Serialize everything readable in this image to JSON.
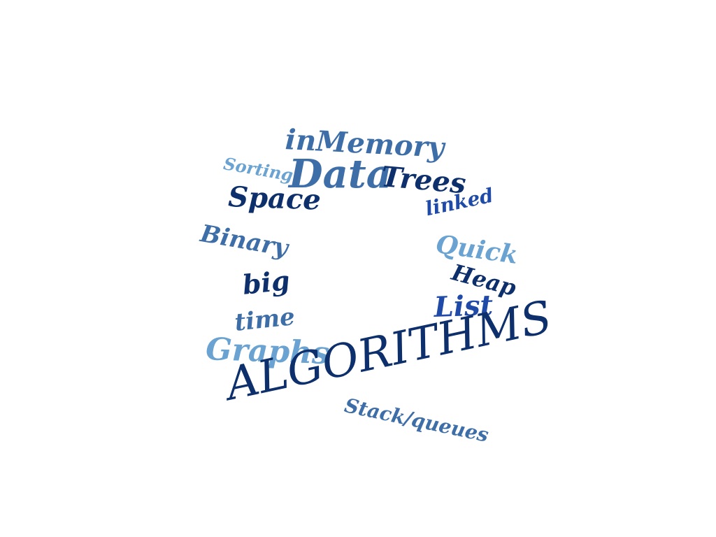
{
  "colors": {
    "background": "#ffffff",
    "navy": "#0d2f6b",
    "dark_blue": "#1c3f7a",
    "steel_blue": "#3d6ea8",
    "light_blue": "#6aa3d2",
    "royal_blue": "#1f4aa8"
  },
  "words": [
    {
      "id": "inmemory",
      "text": "inMemory",
      "color": "#3d6ea8"
    },
    {
      "id": "sorting",
      "text": "Sorting",
      "color": "#6aa3d2"
    },
    {
      "id": "data",
      "text": "Data",
      "color": "#3d6ea8"
    },
    {
      "id": "trees",
      "text": "Trees",
      "color": "#0d2f6b"
    },
    {
      "id": "space",
      "text": "Space",
      "color": "#0d2f6b"
    },
    {
      "id": "linked",
      "text": "linked",
      "color": "#1f4aa8"
    },
    {
      "id": "binary",
      "text": "Binary",
      "color": "#3d6ea8"
    },
    {
      "id": "quick",
      "text": "Quick",
      "color": "#6aa3d2"
    },
    {
      "id": "heap",
      "text": "Heap",
      "color": "#0d2f6b"
    },
    {
      "id": "big",
      "text": "big",
      "color": "#0d2f6b"
    },
    {
      "id": "list",
      "text": "List",
      "color": "#1f4aa8"
    },
    {
      "id": "time",
      "text": "time",
      "color": "#3d6ea8"
    },
    {
      "id": "graphs",
      "text": "Graphs",
      "color": "#6aa3d2"
    },
    {
      "id": "algorithms",
      "text": "ALGORITHMS",
      "color": "#0d2f6b"
    },
    {
      "id": "stack",
      "text": "Stack/queues",
      "color": "#3d6ea8"
    }
  ]
}
